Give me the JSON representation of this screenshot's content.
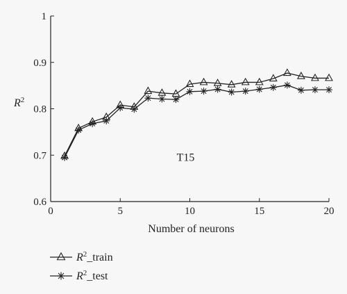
{
  "chart_data": {
    "type": "line",
    "title": "",
    "annotation": "T15",
    "xlabel": "Number of neurons",
    "ylabel": "R2",
    "xlim": [
      0,
      20
    ],
    "ylim": [
      0.6,
      1.0
    ],
    "xticks": [
      0,
      5,
      10,
      15,
      20
    ],
    "yticks": [
      0.6,
      0.7,
      0.8,
      0.9,
      1
    ],
    "ytick_labels": [
      "0.6",
      "0.7",
      "0.8",
      "0.9",
      "1"
    ],
    "grid": false,
    "legend_position": "bottom-left",
    "x": [
      1,
      2,
      3,
      4,
      5,
      6,
      7,
      8,
      9,
      10,
      11,
      12,
      13,
      14,
      15,
      16,
      17,
      18,
      19,
      20
    ],
    "series": [
      {
        "name": "R2_train",
        "marker": "triangle",
        "values": [
          0.698,
          0.758,
          0.772,
          0.782,
          0.808,
          0.804,
          0.838,
          0.834,
          0.832,
          0.853,
          0.857,
          0.855,
          0.852,
          0.857,
          0.857,
          0.865,
          0.877,
          0.87,
          0.866,
          0.866
        ]
      },
      {
        "name": "R2_test",
        "marker": "asterisk",
        "values": [
          0.695,
          0.754,
          0.768,
          0.774,
          0.802,
          0.799,
          0.823,
          0.821,
          0.82,
          0.837,
          0.838,
          0.842,
          0.836,
          0.838,
          0.842,
          0.846,
          0.851,
          0.84,
          0.841,
          0.841
        ]
      }
    ],
    "color": "#222222"
  }
}
